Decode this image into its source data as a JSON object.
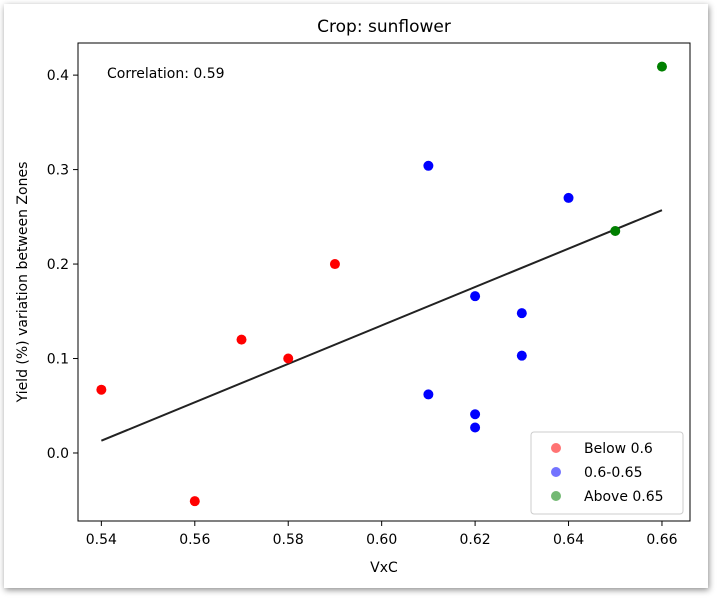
{
  "chart_data": {
    "type": "scatter",
    "title": "Crop: sunflower",
    "xlabel": "VxC",
    "ylabel": "Yield (%) variation between Zones",
    "annotation": "Correlation: 0.59",
    "xlim": [
      0.535,
      0.666
    ],
    "ylim": [
      -0.072,
      0.434
    ],
    "xticks": [
      0.54,
      0.56,
      0.58,
      0.6,
      0.62,
      0.64,
      0.66
    ],
    "xtick_labels": [
      "0.54",
      "0.56",
      "0.58",
      "0.60",
      "0.62",
      "0.64",
      "0.66"
    ],
    "yticks": [
      0.0,
      0.1,
      0.2,
      0.3,
      0.4
    ],
    "ytick_labels": [
      "0.0",
      "0.1",
      "0.2",
      "0.3",
      "0.4"
    ],
    "legend_position": "bottom-right",
    "series": [
      {
        "name": "Below 0.6",
        "color": "#ff0000",
        "points": [
          [
            0.54,
            0.067
          ],
          [
            0.56,
            -0.051
          ],
          [
            0.57,
            0.12
          ],
          [
            0.58,
            0.1
          ],
          [
            0.59,
            0.2
          ]
        ]
      },
      {
        "name": "0.6-0.65",
        "color": "#0000ff",
        "points": [
          [
            0.61,
            0.304
          ],
          [
            0.61,
            0.062
          ],
          [
            0.62,
            0.166
          ],
          [
            0.62,
            0.041
          ],
          [
            0.62,
            0.027
          ],
          [
            0.63,
            0.148
          ],
          [
            0.63,
            0.103
          ],
          [
            0.64,
            0.27
          ]
        ]
      },
      {
        "name": "Above 0.65",
        "color": "#008000",
        "points": [
          [
            0.65,
            0.235
          ],
          [
            0.66,
            0.409
          ]
        ]
      }
    ],
    "trend_line": {
      "x": [
        0.54,
        0.66
      ],
      "y": [
        0.013,
        0.257
      ],
      "color": "#222222"
    }
  }
}
